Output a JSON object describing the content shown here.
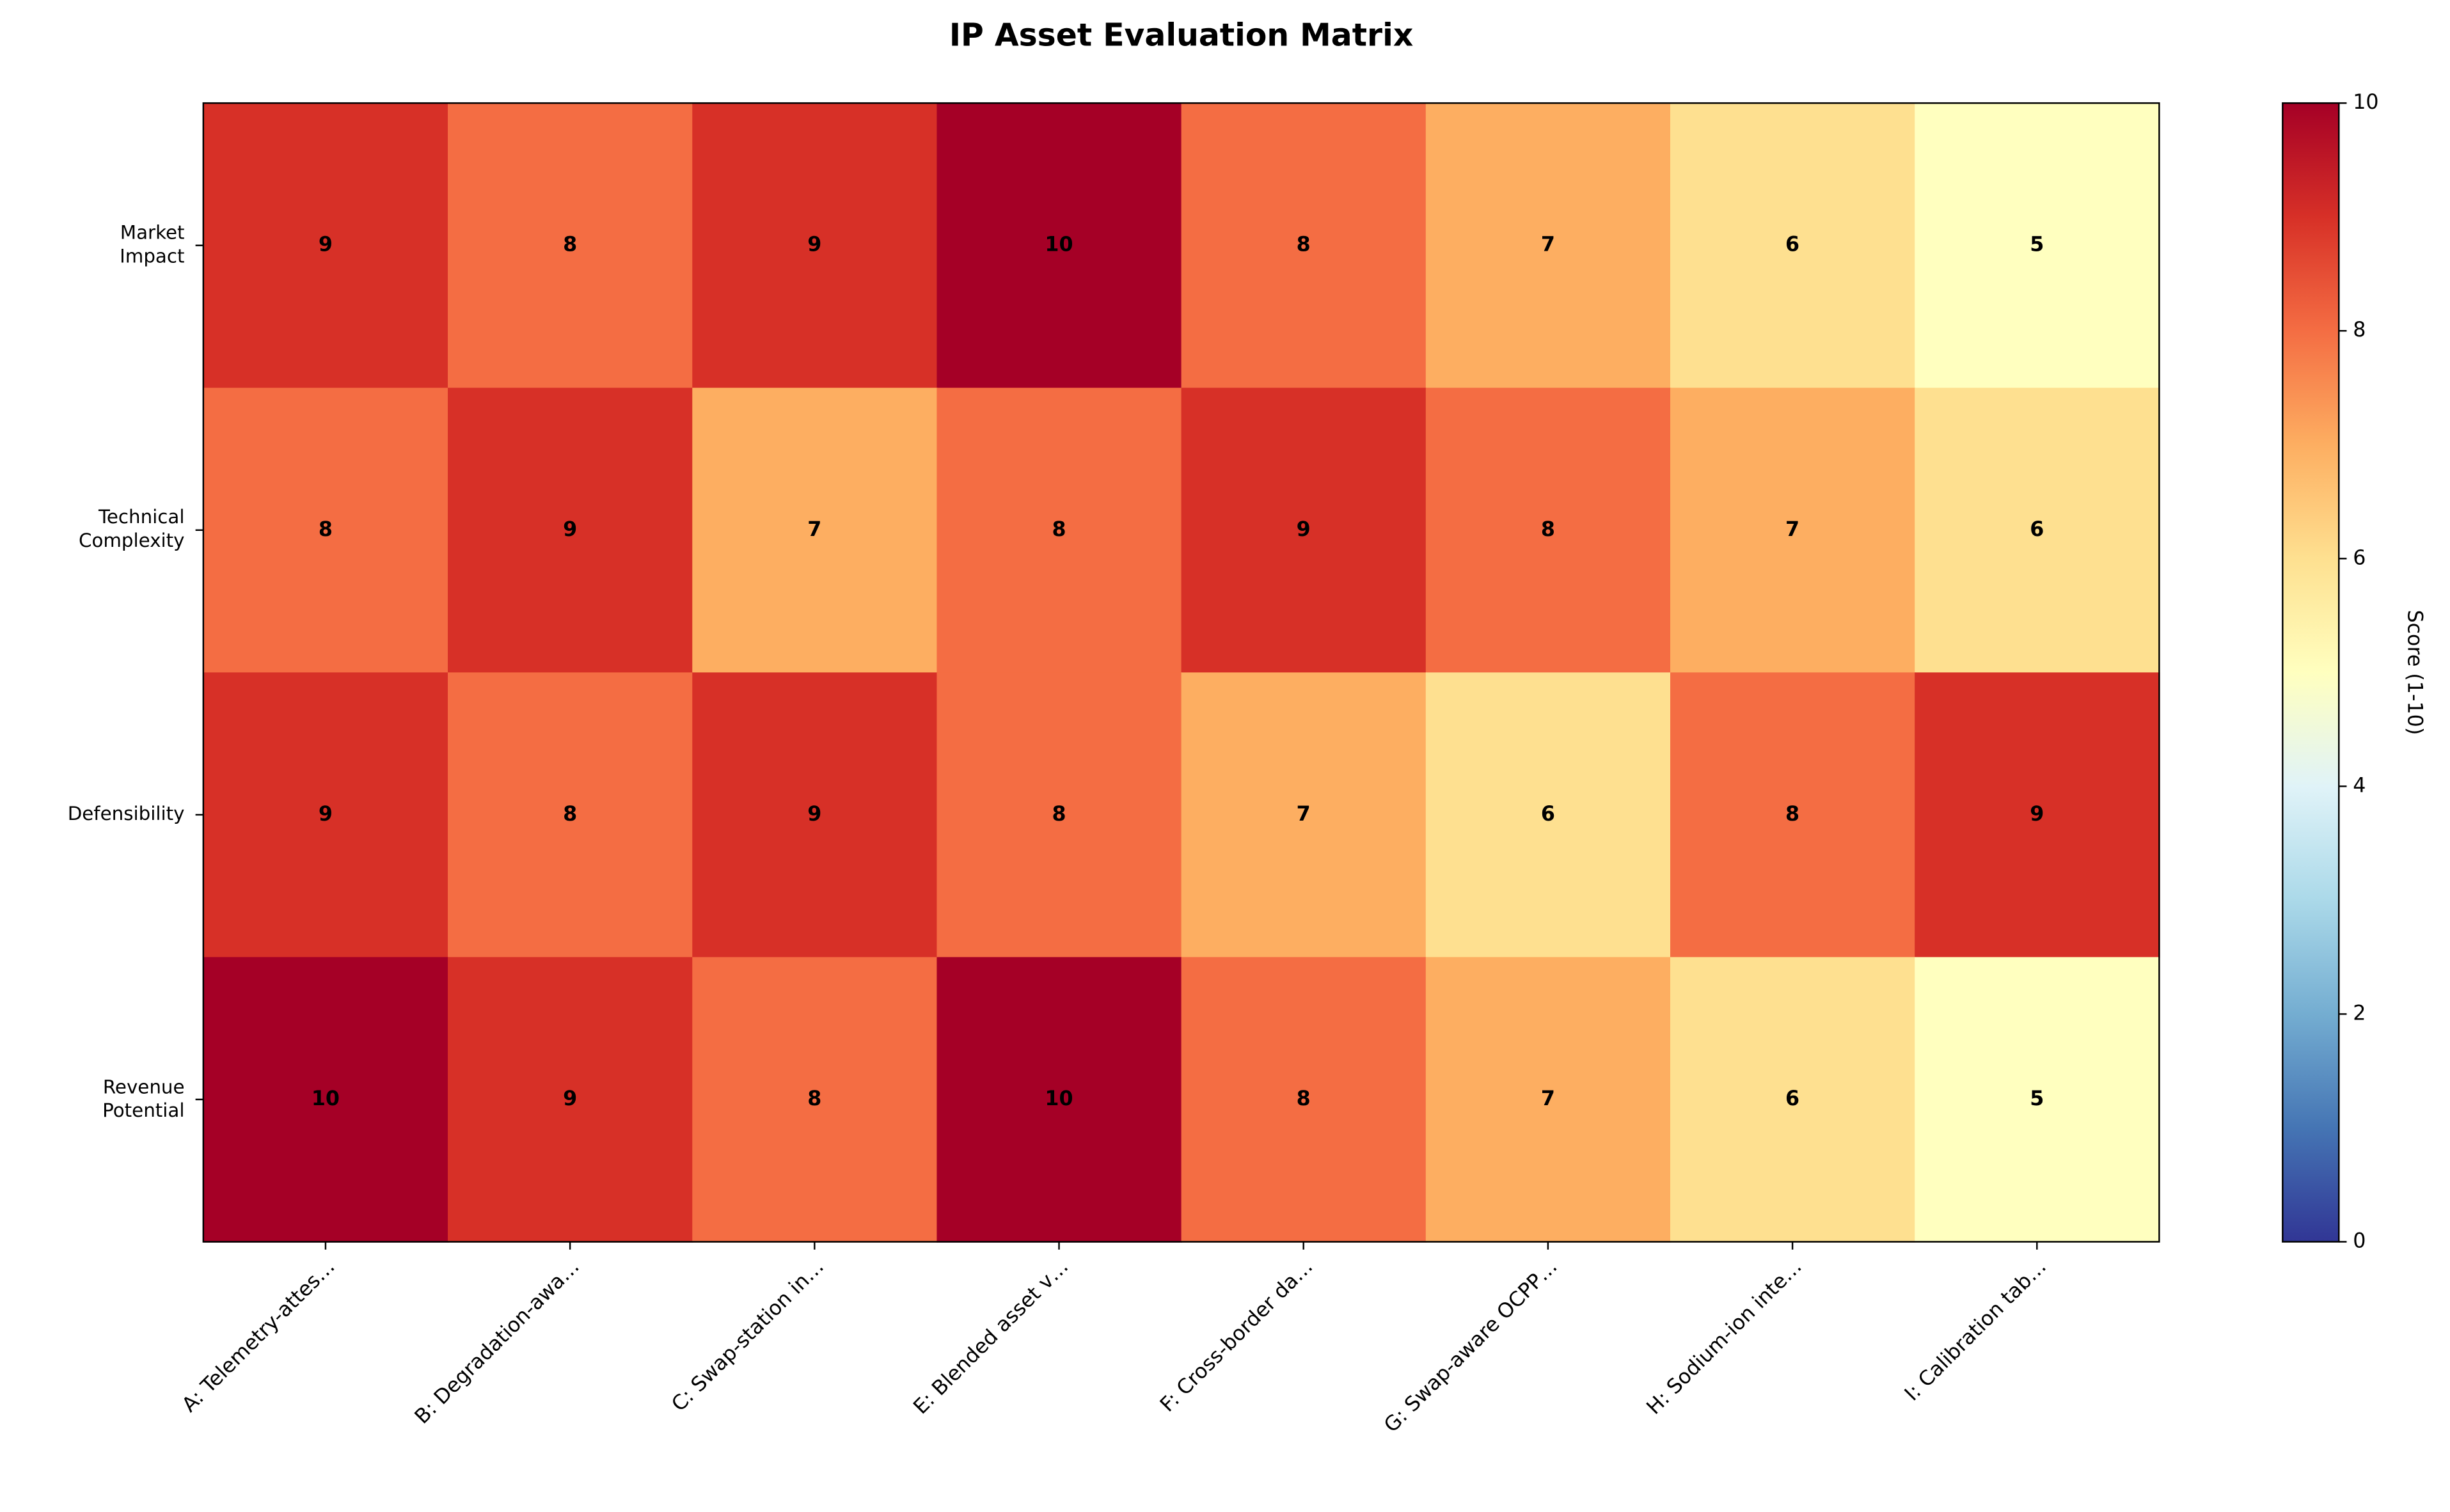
{
  "chart_data": {
    "type": "heatmap",
    "title": "IP Asset Evaluation Matrix",
    "rows": [
      "Market Impact",
      "Technical Complexity",
      "Defensibility",
      "Revenue Potential"
    ],
    "columns": [
      "A: Telemetry-attes…",
      "B: Degradation-awa…",
      "C: Swap-station in…",
      "E: Blended asset v…",
      "F: Cross-border da…",
      "G: Swap-aware OCPP…",
      "H: Sodium-ion inte…",
      "I: Calibration tab…"
    ],
    "values": [
      [
        9,
        8,
        9,
        10,
        8,
        7,
        6,
        5
      ],
      [
        8,
        9,
        7,
        8,
        9,
        8,
        7,
        6
      ],
      [
        9,
        8,
        9,
        8,
        7,
        6,
        8,
        9
      ],
      [
        10,
        9,
        8,
        10,
        8,
        7,
        6,
        5
      ]
    ],
    "colorscale": [
      "#313695",
      "#4575b4",
      "#74add1",
      "#abd9e9",
      "#e0f3f8",
      "#ffffbf",
      "#fee090",
      "#fdae61",
      "#f46d43",
      "#d73027",
      "#a50026"
    ],
    "zlim": [
      0,
      10
    ],
    "colorbar_ticks": [
      0,
      2,
      4,
      6,
      8,
      10
    ],
    "colorbar_label": "Score (1-10)"
  }
}
